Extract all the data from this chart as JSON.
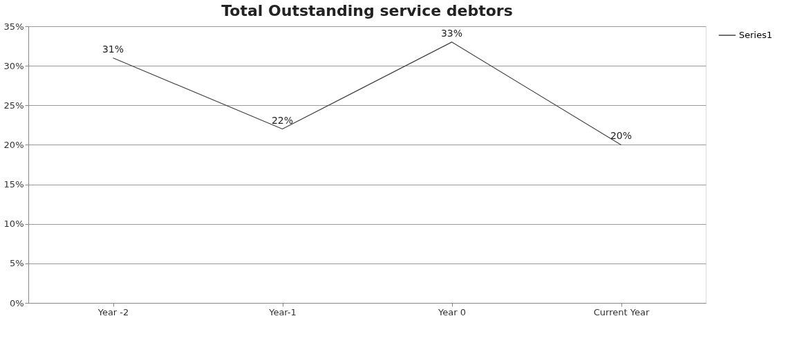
{
  "chart_data": {
    "type": "line",
    "title": "Total Outstanding service debtors",
    "categories": [
      "Year -2",
      "Year-1",
      "Year 0",
      "Current Year"
    ],
    "series": [
      {
        "name": "Series1",
        "color": "#404040",
        "values": [
          31,
          22,
          33,
          20
        ],
        "value_labels": [
          "31%",
          "22%",
          "33%",
          "20%"
        ]
      }
    ],
    "ylim": [
      0,
      35
    ],
    "yticks": [
      {
        "value": 0,
        "label": "0%"
      },
      {
        "value": 5,
        "label": "5%"
      },
      {
        "value": 10,
        "label": "10%"
      },
      {
        "value": 15,
        "label": "15%"
      },
      {
        "value": 20,
        "label": "20%"
      },
      {
        "value": 25,
        "label": "25%"
      },
      {
        "value": 30,
        "label": "30%"
      },
      {
        "value": 35,
        "label": "35%"
      }
    ],
    "grid": "y",
    "legend": "right",
    "marker": "none",
    "line_style": "solid"
  }
}
